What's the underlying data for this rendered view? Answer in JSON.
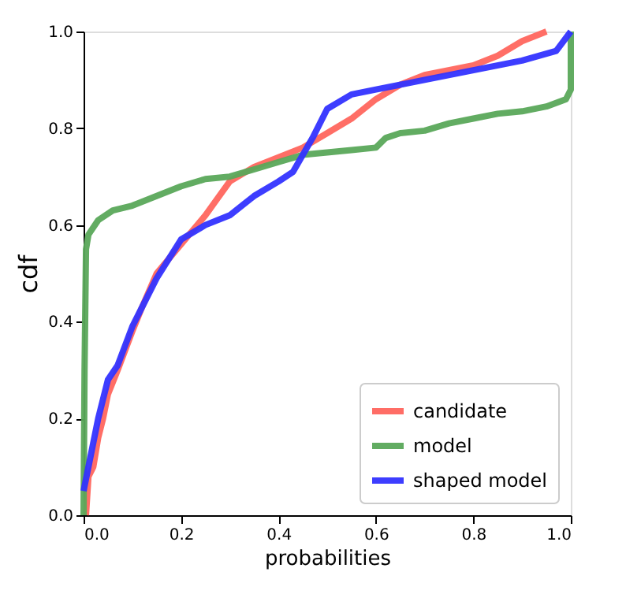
{
  "chart_data": {
    "type": "line",
    "xlabel": "probabilities",
    "ylabel": "cdf",
    "xlim": [
      0,
      1
    ],
    "ylim": [
      0,
      1
    ],
    "xticks": [
      {
        "value": 0,
        "label": "0.0"
      },
      0.2,
      0.4,
      0.6,
      0.8,
      {
        "value": 1,
        "label": "1.0"
      }
    ],
    "yticks": [
      {
        "value": 0,
        "label": "0.0"
      },
      0.2,
      0.4,
      0.6,
      0.8,
      {
        "value": 1,
        "label": "1.0"
      }
    ],
    "grid": false,
    "legend": "bottom right",
    "marker": "none",
    "line_style": "solid",
    "series": [
      {
        "name": "candidate",
        "color": "#ff665e",
        "x": [
          0.005,
          0.01,
          0.02,
          0.03,
          0.04,
          0.05,
          0.07,
          0.1,
          0.12,
          0.15,
          0.2,
          0.25,
          0.3,
          0.35,
          0.4,
          0.45,
          0.5,
          0.55,
          0.6,
          0.65,
          0.7,
          0.8,
          0.85,
          0.9,
          0.95
        ],
        "values": [
          0,
          0.08,
          0.1,
          0.16,
          0.2,
          0.25,
          0.3,
          0.38,
          0.43,
          0.5,
          0.56,
          0.62,
          0.69,
          0.72,
          0.74,
          0.76,
          0.79,
          0.82,
          0.86,
          0.89,
          0.91,
          0.93,
          0.95,
          0.98,
          1.0
        ]
      },
      {
        "name": "model",
        "color": "#5aa85a",
        "x": [
          0,
          0.002,
          0.005,
          0.01,
          0.03,
          0.06,
          0.1,
          0.15,
          0.2,
          0.25,
          0.3,
          0.35,
          0.4,
          0.45,
          0.5,
          0.55,
          0.6,
          0.62,
          0.65,
          0.7,
          0.75,
          0.8,
          0.85,
          0.9,
          0.95,
          0.99,
          1.0,
          1.0
        ],
        "values": [
          0,
          0.3,
          0.55,
          0.58,
          0.61,
          0.63,
          0.64,
          0.66,
          0.68,
          0.695,
          0.7,
          0.715,
          0.73,
          0.745,
          0.75,
          0.755,
          0.76,
          0.78,
          0.79,
          0.795,
          0.81,
          0.82,
          0.83,
          0.835,
          0.845,
          0.86,
          0.88,
          1.0
        ]
      },
      {
        "name": "shaped model",
        "color": "#3333ff",
        "x": [
          0,
          0.01,
          0.02,
          0.03,
          0.05,
          0.07,
          0.1,
          0.15,
          0.2,
          0.25,
          0.3,
          0.35,
          0.4,
          0.43,
          0.47,
          0.5,
          0.55,
          0.6,
          0.7,
          0.8,
          0.9,
          0.97,
          1.0
        ],
        "values": [
          0.05,
          0.1,
          0.15,
          0.2,
          0.28,
          0.31,
          0.39,
          0.49,
          0.57,
          0.6,
          0.62,
          0.66,
          0.69,
          0.71,
          0.78,
          0.84,
          0.87,
          0.88,
          0.9,
          0.92,
          0.94,
          0.96,
          1.0
        ]
      }
    ]
  }
}
